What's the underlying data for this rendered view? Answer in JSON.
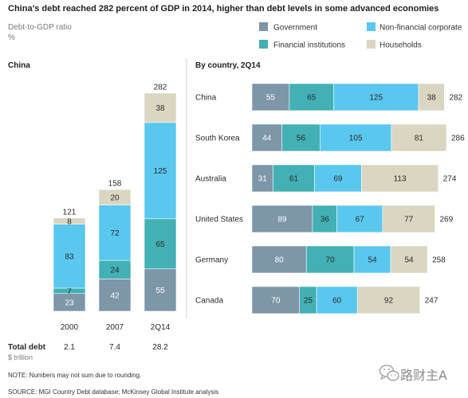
{
  "title": "China’s debt reached 282 percent of GDP in 2014, higher than debt levels in some advanced economies",
  "subtitle": "Debt-to-GDP ratio",
  "unit": "%",
  "legend": [
    {
      "name": "Government",
      "color": "#7d96a8"
    },
    {
      "name": "Non-financial corporate",
      "color": "#5ac7ee"
    },
    {
      "name": "Financial institutions",
      "color": "#42b0b4"
    },
    {
      "name": "Households",
      "color": "#dad6c2"
    }
  ],
  "chart_data": [
    {
      "type": "bar",
      "orientation": "vertical",
      "stacked": true,
      "title": "China",
      "categories": [
        "2000",
        "2007",
        "2Q14"
      ],
      "series": [
        {
          "name": "Government",
          "values": [
            23,
            42,
            55
          ]
        },
        {
          "name": "Financial institutions",
          "values": [
            7,
            24,
            65
          ]
        },
        {
          "name": "Non-financial corporate",
          "values": [
            83,
            72,
            125
          ]
        },
        {
          "name": "Households",
          "values": [
            8,
            20,
            38
          ]
        }
      ],
      "totals": [
        121,
        158,
        282
      ],
      "total_debt": {
        "label": "Total debt",
        "unit": "$ trillion",
        "values": [
          2.1,
          7.4,
          28.2
        ]
      },
      "legend": "top-right",
      "grid": false
    },
    {
      "type": "bar",
      "orientation": "horizontal",
      "stacked": true,
      "title": "By country, 2Q14",
      "categories": [
        "China",
        "South Korea",
        "Australia",
        "United States",
        "Germany",
        "Canada"
      ],
      "series": [
        {
          "name": "Government",
          "values": [
            55,
            44,
            31,
            89,
            80,
            70
          ]
        },
        {
          "name": "Financial institutions",
          "values": [
            65,
            56,
            61,
            36,
            70,
            25
          ]
        },
        {
          "name": "Non-financial corporate",
          "values": [
            125,
            105,
            69,
            67,
            54,
            60
          ]
        },
        {
          "name": "Households",
          "values": [
            38,
            81,
            113,
            77,
            54,
            92
          ]
        }
      ],
      "totals": [
        282,
        286,
        274,
        269,
        258,
        247
      ],
      "legend": "top-right",
      "grid": false
    }
  ],
  "notes": {
    "note": "NOTE: Numbers may not sum due to rounding.",
    "source": "SOURCE: MGI Country Debt database; McKinsey Global Institute analysis"
  },
  "watermark": {
    "icon": "wechat-icon",
    "text": "路财主A"
  }
}
